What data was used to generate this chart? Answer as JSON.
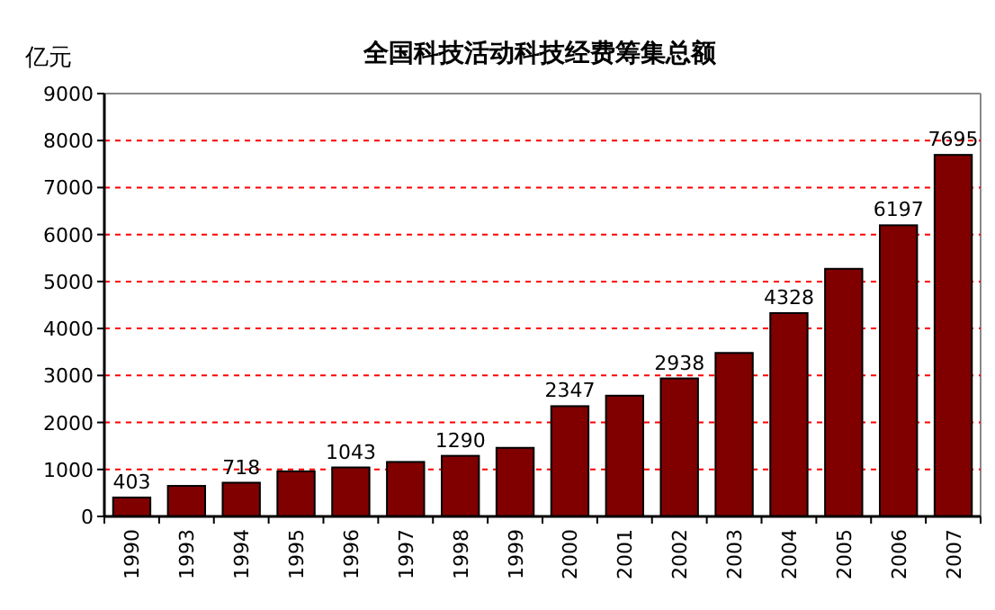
{
  "chart_data": {
    "type": "bar",
    "title": "全国科技活动科技经费筹集总额",
    "ylabel": "亿元",
    "categories": [
      "1990",
      "1993",
      "1994",
      "1995",
      "1996",
      "1997",
      "1998",
      "1999",
      "2000",
      "2001",
      "2002",
      "2003",
      "2004",
      "2005",
      "2006",
      "2007"
    ],
    "values": [
      403,
      650,
      718,
      960,
      1043,
      1160,
      1290,
      1460,
      2347,
      2570,
      2938,
      3480,
      4328,
      5270,
      6197,
      7695
    ],
    "value_labels": [
      "403",
      null,
      "718",
      null,
      "1043",
      null,
      "1290",
      null,
      "2347",
      null,
      "2938",
      null,
      "4328",
      null,
      "6197",
      "7695"
    ],
    "color": "#800000",
    "ylim": [
      0,
      9000
    ],
    "yticks": [
      0,
      1000,
      2000,
      3000,
      4000,
      5000,
      6000,
      7000,
      8000,
      9000
    ],
    "grid": "y"
  }
}
